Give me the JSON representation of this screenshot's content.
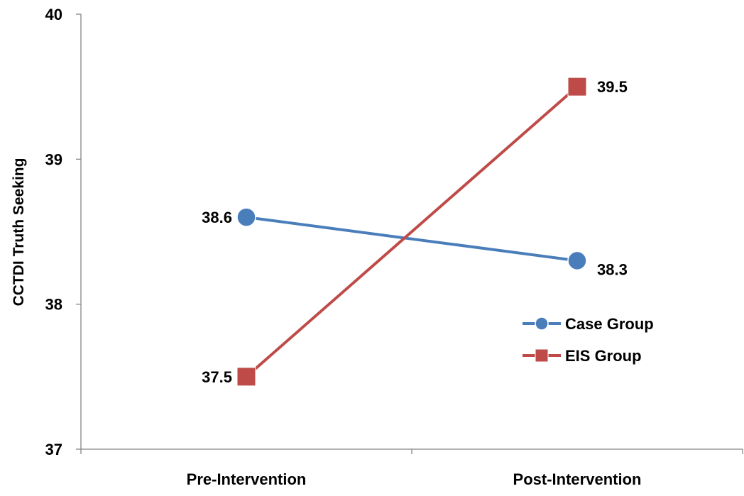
{
  "chart_data": {
    "type": "line",
    "title": "",
    "xlabel": "",
    "ylabel": "CCTDI Truth Seeking",
    "categories": [
      "Pre-Intervention",
      "Post-Intervention"
    ],
    "ylim": [
      37,
      40
    ],
    "yticks": [
      37,
      38,
      39,
      40
    ],
    "grid": false,
    "legend_position": "right",
    "series": [
      {
        "name": "Case Group",
        "values": [
          38.6,
          38.3
        ],
        "labels": [
          "38.6",
          "38.3"
        ],
        "color": "#4a7ebb",
        "marker": "circle"
      },
      {
        "name": "EIS Group",
        "values": [
          37.5,
          39.5
        ],
        "labels": [
          "37.5",
          "39.5"
        ],
        "color": "#be4b48",
        "marker": "square"
      }
    ]
  }
}
